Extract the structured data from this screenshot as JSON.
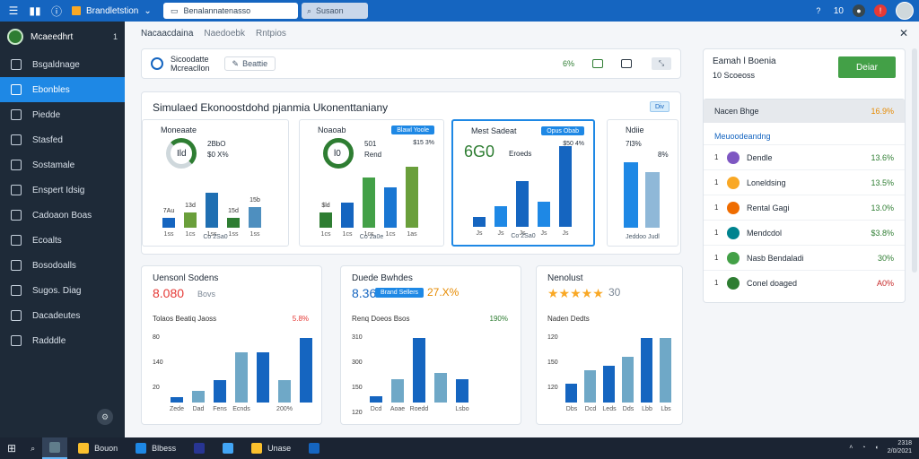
{
  "topbar": {
    "app_name": "Brandletstion",
    "search_placeholder": "Benalannatenasso",
    "search2_label": "Susaon",
    "icons": [
      "menu-icon",
      "chart-icon",
      "info-icon"
    ],
    "right_labels": [
      "10"
    ]
  },
  "sidebar": {
    "header_title": "Mcaeedhrt",
    "header_num": "1",
    "items": [
      {
        "label": "Bsgaldnage",
        "icon": "grid-icon",
        "active": false
      },
      {
        "label": "Ebonbles",
        "icon": "search-icon",
        "active": true
      },
      {
        "label": "Piedde",
        "icon": "pen-icon",
        "active": false
      },
      {
        "label": "Stasfed",
        "icon": "wrench-icon",
        "active": false
      },
      {
        "label": "Sostamale",
        "icon": "circle-icon",
        "active": false
      },
      {
        "label": "Enspert Idsig",
        "icon": "edit-icon",
        "active": false
      },
      {
        "label": "Cadoaon Boas",
        "icon": "folder-icon",
        "active": false
      },
      {
        "label": "Ecoalts",
        "icon": "list-icon",
        "active": false
      },
      {
        "label": "Bosodoalls",
        "icon": "people-icon",
        "active": false
      },
      {
        "label": "Sugos. Diag",
        "icon": "image-icon",
        "active": false
      },
      {
        "label": "Dacadeutes",
        "icon": "key-icon",
        "active": false
      },
      {
        "label": "Radddle",
        "icon": "doc-icon",
        "active": false
      }
    ]
  },
  "main": {
    "breadcrumbs": [
      "Nacaacdaina",
      "Naedoebk",
      "Rntpios"
    ],
    "toolbar": {
      "title_line1": "Sicoodatte",
      "title_line2": "Mcreacllon",
      "chip": "Beattie",
      "pct": "6%"
    },
    "panel": {
      "title": "Simulaed Ekonoostdohd pjanmia Ukonenttaniany",
      "btn": "Div",
      "minis": [
        {
          "title": "Moneaate",
          "big1": "2BbO",
          "big2": "$0 X%",
          "center": "Ild",
          "foot": "Co 2Sa0",
          "selected": false,
          "values": [
            4,
            6,
            14,
            4,
            8
          ],
          "labels": [
            "7Au",
            "13d",
            "",
            "15d",
            "15b"
          ],
          "cats": [
            "1ss",
            "1cs",
            "1ss",
            "1ss",
            "1ss"
          ]
        },
        {
          "title": "Noaoab",
          "big1": "501",
          "big2": "Rend",
          "center": "l0",
          "badge": "Blawl Yoole",
          "pct": "$15 3%",
          "foot": "Co 2a0e",
          "selected": false,
          "values": [
            6,
            10,
            20,
            16,
            24
          ],
          "labels": [
            "$ld",
            "",
            "",
            "",
            ""
          ],
          "cats": [
            "1cs",
            "1cs",
            "1cs",
            "1cs",
            "1as"
          ]
        },
        {
          "title": "Mest Sadeat",
          "big1": "6G0",
          "big2": "Eroeds",
          "badge": "Opus Obab",
          "pct": "$50 4%",
          "foot": "Co 2Sa0",
          "selected": true,
          "values": [
            4,
            8,
            18,
            10,
            32
          ],
          "labels": [
            "",
            "",
            "",
            "",
            ""
          ],
          "cats": [
            "Js",
            "Js",
            "Js",
            "Js",
            "Js"
          ]
        },
        {
          "title": "Ndiie",
          "big1": "7l3%",
          "big2": "8%",
          "foot": "Jeddoo  Judl",
          "selected": false,
          "values": [
            26,
            22
          ],
          "labels": [
            "",
            ""
          ],
          "cats": [
            "",
            ""
          ]
        }
      ]
    },
    "big_cards": [
      {
        "title": "Uensonl Sodens",
        "value": "8.080",
        "value_color": "#e53935",
        "value2": "Bovs",
        "sub": "Tolaos Beatiq Jaoss",
        "delta": "5.8%",
        "delta_color": "#e53935",
        "axis": [
          "80",
          "140",
          "20"
        ],
        "values": [
          2,
          4,
          8,
          18,
          18,
          8,
          23
        ],
        "cats": [
          "Zede",
          "Dad",
          "Fens",
          "Ecnds",
          "",
          "200%",
          ""
        ]
      },
      {
        "title": "Duede Bwhdes",
        "value": "8.36",
        "value_color": "#1565c0",
        "value2": "27.X%",
        "badge": "Brand Sellers",
        "sub": "Renq Doeos Bsos",
        "delta": "190%",
        "delta_color": "#2e7d32",
        "axis": [
          "310",
          "300",
          "150",
          "120"
        ],
        "values": [
          2,
          8,
          22,
          10,
          8
        ],
        "cats": [
          "Dcd",
          "Aoae",
          "Roedd",
          "",
          "Lsbo"
        ]
      },
      {
        "title": "Nenolust",
        "value": "★★★★★",
        "value_color": "#f9a825",
        "value2": "30",
        "sub": "Naden Dedts",
        "delta": "",
        "delta_color": "#2e7d32",
        "axis": [
          "120",
          "150",
          "120"
        ],
        "values": [
          8,
          14,
          16,
          20,
          28,
          28
        ],
        "cats": [
          "Dbs",
          "Dcd",
          "Leds",
          "Dds",
          "Lbb",
          "Lbs"
        ]
      }
    ]
  },
  "right": {
    "title": "Eamah l Boenia",
    "subtitle": "10 Scoeoss",
    "button": "Deiar",
    "list_head": "Nacen Bhge",
    "list_head_value": "16.9%",
    "list_subtitle": "Meuoodeandng",
    "rows": [
      {
        "n": "1",
        "name": "Dendle",
        "value": "13.6%",
        "red": false
      },
      {
        "n": "1",
        "name": "Loneldsing",
        "value": "13.5%",
        "red": false
      },
      {
        "n": "1",
        "name": "Rental Gagi",
        "value": "13.0%",
        "red": false
      },
      {
        "n": "1",
        "name": "Mendcdol",
        "value": "$3.8%",
        "red": false
      },
      {
        "n": "1",
        "name": "Nasb Bendaladi",
        "value": "30%",
        "red": false
      },
      {
        "n": "1",
        "name": "Conel doaged",
        "value": "A0%",
        "red": true
      }
    ]
  },
  "taskbar": {
    "items": [
      {
        "label": "",
        "active": true
      },
      {
        "label": "Bouon",
        "active": false
      },
      {
        "label": "Blbess",
        "active": false
      },
      {
        "label": "",
        "active": false
      },
      {
        "label": "",
        "active": false
      },
      {
        "label": "Unase",
        "active": false
      },
      {
        "label": "",
        "active": false
      }
    ],
    "clock_time": "2318",
    "clock_date": "2/0/2021"
  },
  "colors": {
    "accent": "#1565c0",
    "sidebar_bg": "#1e2a38",
    "active": "#1e88e5",
    "positive": "#2e7d32",
    "negative": "#e53935"
  }
}
